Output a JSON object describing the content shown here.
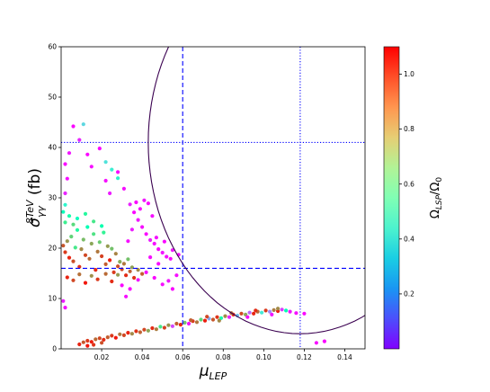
{
  "chart_data": {
    "type": "scatter",
    "xlabel": "μ",
    "xlabel_sub": "LEP",
    "ylabel_prefix": "σ",
    "ylabel_sup": "8TeV",
    "ylabel_sub": "γγ",
    "ylabel_suffix": " (fb)",
    "xlim": [
      0.0,
      0.15
    ],
    "ylim": [
      0,
      60
    ],
    "xticks": [
      {
        "value": 0.02,
        "label": "0.02"
      },
      {
        "value": 0.04,
        "label": "0.04"
      },
      {
        "value": 0.06,
        "label": "0.06"
      },
      {
        "value": 0.08,
        "label": "0.08"
      },
      {
        "value": 0.1,
        "label": "0.10"
      },
      {
        "value": 0.12,
        "label": "0.12"
      },
      {
        "value": 0.14,
        "label": "0.14"
      }
    ],
    "yticks": [
      {
        "value": 0,
        "label": "0"
      },
      {
        "value": 10,
        "label": "10"
      },
      {
        "value": 20,
        "label": "20"
      },
      {
        "value": 30,
        "label": "30"
      },
      {
        "value": 40,
        "label": "40"
      },
      {
        "value": 50,
        "label": "50"
      },
      {
        "value": 60,
        "label": "60"
      }
    ],
    "grid": false,
    "colorbar": {
      "label_prefix": "Ω",
      "label_sub": "LSP",
      "label_mid": "/Ω",
      "label_sub2": "0",
      "range": [
        0.0,
        1.1
      ],
      "colormap": "rainbow",
      "ticks": [
        {
          "value": 0.2,
          "label": "0.2"
        },
        {
          "value": 0.4,
          "label": "0.4"
        },
        {
          "value": 0.6,
          "label": "0.6"
        },
        {
          "value": 0.8,
          "label": "0.8"
        },
        {
          "value": 1.0,
          "label": "1.0"
        }
      ]
    },
    "reference_lines": [
      {
        "orientation": "vertical",
        "x": 0.06,
        "style": "dashed",
        "color": "#0000ff"
      },
      {
        "orientation": "vertical",
        "x": 0.118,
        "style": "dotted",
        "color": "#0000ff"
      },
      {
        "orientation": "horizontal",
        "y": 41,
        "style": "dotted",
        "color": "#0000ff"
      },
      {
        "orientation": "horizontal",
        "y": 16,
        "style": "dashed",
        "color": "#0000ff"
      }
    ],
    "contour": {
      "type": "ellipse",
      "center_x": 0.118,
      "center_y": 41,
      "radius_x": 0.075,
      "radius_y": 38,
      "color": "#3a0050"
    },
    "series": [
      {
        "points": [
          [
            0.001,
            20.5,
            0.98
          ],
          [
            0.002,
            19.2,
            1.02
          ],
          [
            0.003,
            21.4,
            0.88
          ],
          [
            0.004,
            18.1,
            1.05
          ],
          [
            0.005,
            22.3,
            0.76
          ],
          [
            0.006,
            17.4,
            0.99
          ],
          [
            0.007,
            20.1,
            0.7
          ],
          [
            0.008,
            23.6,
            0.62
          ],
          [
            0.009,
            16.3,
            1.03
          ],
          [
            0.01,
            19.8,
            0.9
          ],
          [
            0.011,
            21.7,
            0.81
          ],
          [
            0.012,
            18.6,
            1.0
          ],
          [
            0.013,
            24.2,
            0.55
          ],
          [
            0.014,
            17.9,
            0.95
          ],
          [
            0.015,
            20.9,
            0.85
          ],
          [
            0.016,
            22.8,
            0.72
          ],
          [
            0.017,
            15.7,
            1.04
          ],
          [
            0.018,
            19.3,
            0.93
          ],
          [
            0.019,
            21.2,
            0.78
          ],
          [
            0.02,
            18.4,
            1.01
          ],
          [
            0.021,
            23.1,
            0.66
          ],
          [
            0.022,
            16.8,
            0.97
          ],
          [
            0.023,
            20.4,
            0.87
          ],
          [
            0.024,
            17.6,
            1.06
          ],
          [
            0.025,
            19.9,
            0.8
          ],
          [
            0.026,
            15.2,
            1.02
          ],
          [
            0.027,
            18.9,
            0.91
          ],
          [
            0.028,
            16.4,
            0.99
          ],
          [
            0.029,
            17.3,
            0.84
          ],
          [
            0.03,
            15.8,
            1.0
          ],
          [
            0.031,
            16.9,
            0.93
          ],
          [
            0.032,
            14.6,
            1.04
          ],
          [
            0.033,
            17.8,
            0.8
          ],
          [
            0.034,
            15.4,
            0.96
          ],
          [
            0.035,
            16.2,
            0.86
          ],
          [
            0.036,
            14.1,
            1.03
          ],
          [
            0.038,
            15.7,
            0.9
          ],
          [
            0.04,
            14.9,
            0.97
          ],
          [
            0.002,
            25.1,
            0.68
          ],
          [
            0.004,
            26.4,
            0.59
          ],
          [
            0.006,
            24.7,
            0.74
          ],
          [
            0.008,
            25.9,
            0.51
          ],
          [
            0.012,
            26.8,
            0.63
          ],
          [
            0.016,
            25.3,
            0.7
          ],
          [
            0.02,
            24.4,
            0.57
          ],
          [
            0.003,
            14.2,
            1.05
          ],
          [
            0.006,
            13.6,
            1.0
          ],
          [
            0.009,
            14.8,
            0.94
          ],
          [
            0.012,
            13.1,
            1.07
          ],
          [
            0.015,
            14.5,
            0.89
          ],
          [
            0.018,
            13.8,
            1.02
          ],
          [
            0.022,
            14.9,
            0.95
          ],
          [
            0.025,
            13.4,
            1.04
          ],
          [
            0.028,
            14.7,
            0.87
          ],
          [
            0.001,
            27.2,
            0.52
          ],
          [
            0.002,
            28.6,
            0.45
          ],
          [
            0.002,
            30.9,
            0.05
          ],
          [
            0.003,
            33.8,
            0.02
          ],
          [
            0.002,
            36.7,
            0.01
          ],
          [
            0.004,
            38.9,
            0.03
          ],
          [
            0.001,
            9.5,
            0.04
          ],
          [
            0.002,
            8.2,
            0.02
          ],
          [
            0.006,
            44.2,
            0.01
          ],
          [
            0.009,
            41.5,
            0.05
          ],
          [
            0.011,
            44.6,
            0.35
          ],
          [
            0.013,
            38.6,
            0.01
          ],
          [
            0.015,
            36.2,
            0.02
          ],
          [
            0.019,
            39.8,
            0.01
          ],
          [
            0.022,
            33.4,
            0.02
          ],
          [
            0.024,
            30.9,
            0.04
          ],
          [
            0.028,
            35.1,
            0.01
          ],
          [
            0.031,
            31.8,
            0.02
          ],
          [
            0.034,
            28.7,
            0.05
          ],
          [
            0.036,
            27.1,
            0.01
          ],
          [
            0.038,
            25.6,
            0.03
          ],
          [
            0.04,
            24.2,
            0.02
          ],
          [
            0.042,
            22.8,
            0.01
          ],
          [
            0.044,
            21.6,
            0.04
          ],
          [
            0.046,
            20.9,
            0.02
          ],
          [
            0.048,
            19.8,
            0.01
          ],
          [
            0.05,
            19.1,
            0.03
          ],
          [
            0.052,
            18.3,
            0.02
          ],
          [
            0.054,
            17.9,
            0.01
          ],
          [
            0.045,
            26.4,
            0.02
          ],
          [
            0.043,
            28.9,
            0.01
          ],
          [
            0.041,
            29.5,
            0.03
          ],
          [
            0.039,
            27.8,
            0.02
          ],
          [
            0.037,
            29.1,
            0.01
          ],
          [
            0.035,
            23.7,
            0.04
          ],
          [
            0.033,
            21.4,
            0.02
          ],
          [
            0.03,
            12.6,
            0.01
          ],
          [
            0.032,
            10.4,
            0.02
          ],
          [
            0.034,
            11.9,
            0.01
          ],
          [
            0.038,
            13.7,
            0.03
          ],
          [
            0.042,
            15.2,
            0.02
          ],
          [
            0.046,
            14.1,
            0.01
          ],
          [
            0.05,
            12.8,
            0.02
          ],
          [
            0.053,
            13.5,
            0.03
          ],
          [
            0.055,
            11.9,
            0.01
          ],
          [
            0.057,
            14.6,
            0.02
          ],
          [
            0.025,
            35.6,
            0.42
          ],
          [
            0.022,
            37.1,
            0.38
          ],
          [
            0.028,
            33.9,
            0.46
          ],
          [
            0.047,
            22.1,
            0.02
          ],
          [
            0.051,
            21.3,
            0.01
          ],
          [
            0.055,
            19.6,
            0.03
          ],
          [
            0.058,
            18.7,
            0.02
          ],
          [
            0.048,
            16.9,
            0.01
          ],
          [
            0.044,
            18.2,
            0.02
          ],
          [
            0.009,
            0.9,
            1.05
          ],
          [
            0.011,
            1.3,
            0.98
          ],
          [
            0.013,
            1.6,
            1.02
          ],
          [
            0.015,
            1.4,
            1.06
          ],
          [
            0.017,
            1.9,
            0.95
          ],
          [
            0.019,
            2.1,
            1.0
          ],
          [
            0.021,
            1.8,
            1.04
          ],
          [
            0.023,
            2.3,
            0.97
          ],
          [
            0.025,
            2.6,
            1.02
          ],
          [
            0.027,
            2.2,
            1.07
          ],
          [
            0.029,
            2.9,
            0.93
          ],
          [
            0.031,
            2.7,
            1.0
          ],
          [
            0.033,
            3.2,
            1.05
          ],
          [
            0.035,
            3.0,
            0.9
          ],
          [
            0.037,
            3.5,
            1.03
          ],
          [
            0.039,
            3.3,
            0.96
          ],
          [
            0.041,
            3.8,
            1.0
          ],
          [
            0.043,
            3.6,
            0.85
          ],
          [
            0.045,
            4.1,
            1.04
          ],
          [
            0.047,
            3.9,
            0.92
          ],
          [
            0.049,
            4.4,
            0.7
          ],
          [
            0.051,
            4.2,
            1.01
          ],
          [
            0.053,
            4.7,
            0.88
          ],
          [
            0.055,
            4.5,
            0.1
          ],
          [
            0.057,
            5.0,
            0.97
          ],
          [
            0.059,
            4.8,
            1.05
          ],
          [
            0.061,
            5.2,
            0.8
          ],
          [
            0.063,
            5.0,
            0.02
          ],
          [
            0.065,
            5.5,
            1.02
          ],
          [
            0.067,
            5.3,
            0.93
          ],
          [
            0.069,
            5.8,
            0.75
          ],
          [
            0.071,
            5.6,
            1.06
          ],
          [
            0.073,
            6.0,
            0.25
          ],
          [
            0.075,
            5.8,
            0.98
          ],
          [
            0.077,
            6.3,
            1.03
          ],
          [
            0.079,
            6.1,
            0.6
          ],
          [
            0.081,
            6.5,
            0.9
          ],
          [
            0.083,
            6.3,
            0.05
          ],
          [
            0.085,
            6.8,
            1.04
          ],
          [
            0.087,
            6.6,
            0.3
          ],
          [
            0.089,
            7.0,
            1.0
          ],
          [
            0.091,
            6.8,
            0.85
          ],
          [
            0.093,
            7.2,
            0.15
          ],
          [
            0.095,
            7.0,
            1.05
          ],
          [
            0.097,
            7.4,
            0.95
          ],
          [
            0.099,
            7.2,
            0.4
          ],
          [
            0.101,
            7.6,
            1.02
          ],
          [
            0.103,
            7.4,
            0.2
          ],
          [
            0.105,
            7.7,
            0.92
          ],
          [
            0.107,
            7.5,
            1.06
          ],
          [
            0.109,
            7.8,
            0.08
          ],
          [
            0.111,
            7.6,
            0.55
          ],
          [
            0.113,
            7.4,
            0.03
          ],
          [
            0.116,
            7.1,
            0.02
          ],
          [
            0.12,
            7.0,
            0.01
          ],
          [
            0.126,
            1.2,
            0.02
          ],
          [
            0.13,
            1.5,
            0.01
          ],
          [
            0.013,
            0.6,
            1.07
          ],
          [
            0.016,
            0.8,
            1.03
          ],
          [
            0.02,
            1.2,
            0.99
          ],
          [
            0.064,
            5.7,
            0.96
          ],
          [
            0.072,
            6.4,
            1.0
          ],
          [
            0.084,
            7.1,
            0.94
          ],
          [
            0.096,
            7.6,
            1.04
          ],
          [
            0.107,
            8.0,
            0.9
          ],
          [
            0.104,
            6.8,
            0.03
          ],
          [
            0.092,
            6.3,
            0.02
          ],
          [
            0.078,
            5.6,
            0.9
          ]
        ]
      }
    ]
  }
}
